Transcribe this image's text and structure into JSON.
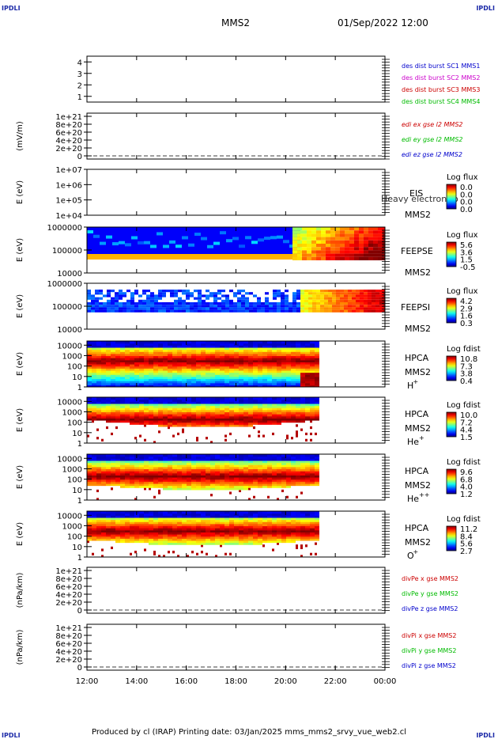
{
  "header": {
    "logo_left": "IPDLI",
    "logo_right": "IPDLI",
    "mission": "MMS2",
    "datetime": "01/Sep/2022 12:00"
  },
  "footer": {
    "text": "Produced by cl (IRAP)   Printing date: 03/Jan/2025   mms_mms2_srvy_vue_web2.cl",
    "logo_bl": "IPDLI",
    "logo_br": "IPDLI"
  },
  "colors": {
    "red": "#cc0000",
    "green": "#00bb00",
    "blue": "#0000cc",
    "magenta": "#cc00cc"
  },
  "chart_data": {
    "type": "heatmap",
    "x_ticks": [
      "12:00",
      "14:00",
      "16:00",
      "18:00",
      "20:00",
      "22:00",
      "00:00"
    ],
    "x_range_hours": [
      12,
      24
    ],
    "data_end_hour": 21.3,
    "panels": [
      {
        "kind": "line",
        "ylabel": "",
        "yticks": [
          "4",
          "3",
          "2",
          "1"
        ],
        "ylim": [
          0.5,
          4.5
        ],
        "series": [
          {
            "name": "des dist burst SC1 MMS1",
            "color": "#0000cc"
          },
          {
            "name": "des dist burst SC2 MMS2",
            "color": "#cc00cc"
          },
          {
            "name": "des dist burst SC3 MMS3",
            "color": "#cc0000"
          },
          {
            "name": "des dist burst SC4 MMS4",
            "color": "#00bb00"
          }
        ],
        "zero_line": false
      },
      {
        "kind": "line",
        "ylabel": "(mV/m)",
        "yticks": [
          "1e+21",
          "8e+20",
          "6e+20",
          "4e+20",
          "2e+20",
          "0"
        ],
        "ylim": [
          0,
          1e+21
        ],
        "series": [
          {
            "name": "edi ex gse l2 MMS2",
            "color": "#cc0000"
          },
          {
            "name": "edi ey gse l2 MMS2",
            "color": "#00bb00"
          },
          {
            "name": "edi ez gse l2 MMS2",
            "color": "#0000cc"
          }
        ],
        "zero_line": true
      },
      {
        "kind": "spec",
        "ylabel": "E (eV)",
        "yticks": [
          "1e+07",
          "1e+06",
          "1e+05",
          "1e+04"
        ],
        "ylog": [
          4,
          7
        ],
        "instrument": [
          "EIS",
          "MMS2"
        ],
        "overlay": "Heavy electron to",
        "cbar": {
          "title": "Log flux",
          "ticks": [
            "0.0",
            "0.0",
            "0.0",
            "0.0"
          ]
        },
        "data": "none"
      },
      {
        "kind": "spec",
        "ylabel": "E (eV)",
        "yticks": [
          "1000000",
          "100000",
          "10000"
        ],
        "ylog": [
          4,
          6
        ],
        "instrument": [
          "FEEPSE",
          "MMS2"
        ],
        "cbar": {
          "title": "Log flux",
          "ticks": [
            "5.6",
            "3.6",
            "1.5",
            "-0.5"
          ]
        },
        "data": "feepse"
      },
      {
        "kind": "spec",
        "ylabel": "E (eV)",
        "yticks": [
          "1000000",
          "100000",
          "10000"
        ],
        "ylog": [
          4,
          6
        ],
        "instrument": [
          "FEEPSI",
          "MMS2"
        ],
        "cbar": {
          "title": "Log flux",
          "ticks": [
            "4.2",
            "2.9",
            "1.6",
            "0.3"
          ]
        },
        "data": "feepsi"
      },
      {
        "kind": "spec",
        "ylabel": "E (eV)",
        "yticks": [
          "10000",
          "1000",
          "100",
          "10",
          "1"
        ],
        "ylog": [
          0,
          4.4
        ],
        "instrument": [
          "HPCA",
          "MMS2"
        ],
        "species": "H",
        "species_sup": "+",
        "cbar": {
          "title": "Log fdist",
          "ticks": [
            "10.8",
            "7.3",
            "3.8",
            "0.4"
          ]
        },
        "data": "hplus"
      },
      {
        "kind": "spec",
        "ylabel": "E (eV)",
        "yticks": [
          "10000",
          "1000",
          "100",
          "10",
          "1"
        ],
        "ylog": [
          0,
          4.4
        ],
        "instrument": [
          "HPCA",
          "MMS2"
        ],
        "species": "He",
        "species_sup": "+",
        "cbar": {
          "title": "Log fdist",
          "ticks": [
            "10.0",
            "7.2",
            "4.4",
            "1.5"
          ]
        },
        "data": "heplus"
      },
      {
        "kind": "spec",
        "ylabel": "E (eV)",
        "yticks": [
          "10000",
          "1000",
          "100",
          "10",
          "1"
        ],
        "ylog": [
          0,
          4.4
        ],
        "instrument": [
          "HPCA",
          "MMS2"
        ],
        "species": "He",
        "species_sup": "++",
        "cbar": {
          "title": "Log fdist",
          "ticks": [
            "9.6",
            "6.8",
            "4.0",
            "1.2"
          ]
        },
        "data": "heplusplus"
      },
      {
        "kind": "spec",
        "ylabel": "E (eV)",
        "yticks": [
          "10000",
          "1000",
          "100",
          "10",
          "1"
        ],
        "ylog": [
          0,
          4.4
        ],
        "instrument": [
          "HPCA",
          "MMS2"
        ],
        "species": "O",
        "species_sup": "+",
        "cbar": {
          "title": "Log fdist",
          "ticks": [
            "11.2",
            "8.4",
            "5.6",
            "2.7"
          ]
        },
        "data": "oplus"
      },
      {
        "kind": "line",
        "ylabel": "(nPa/km)",
        "yticks": [
          "1e+21",
          "8e+20",
          "6e+20",
          "4e+20",
          "2e+20",
          "0"
        ],
        "ylim": [
          0,
          1e+21
        ],
        "series": [
          {
            "name": "divPe x gse MMS2",
            "color": "#cc0000"
          },
          {
            "name": "divPe y gse MMS2",
            "color": "#00bb00"
          },
          {
            "name": "divPe z gse MMS2",
            "color": "#0000cc"
          }
        ],
        "zero_line": true
      },
      {
        "kind": "line",
        "ylabel": "(nPa/km)",
        "yticks": [
          "1e+21",
          "8e+20",
          "6e+20",
          "4e+20",
          "2e+20",
          "0"
        ],
        "ylim": [
          0,
          1e+21
        ],
        "series": [
          {
            "name": "divPi x gse MMS2",
            "color": "#cc0000"
          },
          {
            "name": "divPi y gse MMS2",
            "color": "#00bb00"
          },
          {
            "name": "divPi z gse MMS2",
            "color": "#0000cc"
          }
        ],
        "zero_line": true
      }
    ]
  }
}
